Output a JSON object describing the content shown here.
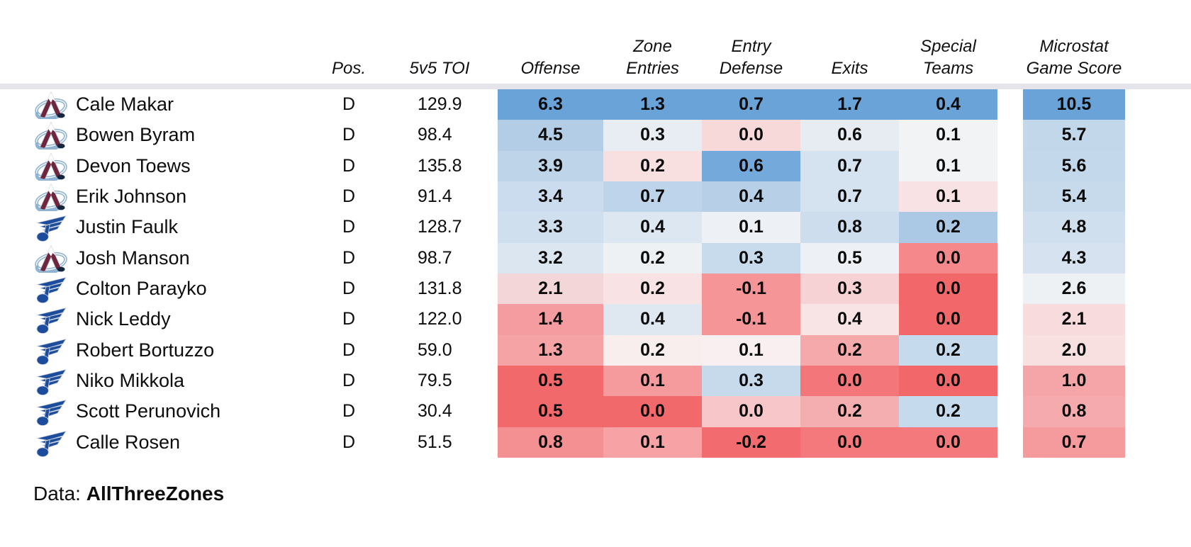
{
  "table": {
    "headers": {
      "pos": "Pos.",
      "toi": "5v5 TOI",
      "offense": "Offense",
      "zone_entries": [
        "Zone",
        "Entries"
      ],
      "entry_defense": [
        "Entry",
        "Defense"
      ],
      "exits": "Exits",
      "special_teams": [
        "Special",
        "Teams"
      ],
      "game_score": [
        "Microstat",
        "Game Score"
      ]
    }
  },
  "footer": {
    "prefix": "Data:",
    "source": "AllThreeZones"
  },
  "colors": {
    "divider": "#e4e4ea",
    "heat_high_blue": "#69a3d8",
    "heat_low_red": "#f2676a",
    "avalanche_burgundy": "#6f263d",
    "avalanche_steel_blue": "#8fb3d3",
    "blues_blue": "#1c4c9c"
  },
  "chart_data": {
    "type": "heatmap",
    "columns": [
      "Pos.",
      "5v5 TOI",
      "Offense",
      "Zone Entries",
      "Entry Defense",
      "Exits",
      "Special Teams",
      "Microstat Game Score"
    ],
    "legend": "Cell background encodes value per column: red = low, white = mid, blue = high",
    "rows": [
      {
        "player": "Cale Makar",
        "team": "Colorado Avalanche",
        "team_id": "AVL",
        "pos": "D",
        "toi": "129.9",
        "values": {
          "offense": "6.3",
          "zone_entries": "1.3",
          "entry_defense": "0.7",
          "exits": "1.7",
          "special_teams": "0.4",
          "game_score": "10.5"
        },
        "cell_colors": [
          "#69a3d8",
          "#69a3d8",
          "#69a3d8",
          "#69a3d8",
          "#69a3d8",
          "#69a3d8"
        ]
      },
      {
        "player": "Bowen Byram",
        "team": "Colorado Avalanche",
        "team_id": "AVL",
        "pos": "D",
        "toi": "98.4",
        "values": {
          "offense": "4.5",
          "zone_entries": "0.3",
          "entry_defense": "0.0",
          "exits": "0.6",
          "special_teams": "0.1",
          "game_score": "5.7"
        },
        "cell_colors": [
          "#b3cde7",
          "#e7edf3",
          "#f7d9da",
          "#e7ecf2",
          "#f1f3f4",
          "#c3d7ea"
        ]
      },
      {
        "player": "Devon Toews",
        "team": "Colorado Avalanche",
        "team_id": "AVL",
        "pos": "D",
        "toi": "135.8",
        "values": {
          "offense": "3.9",
          "zone_entries": "0.2",
          "entry_defense": "0.6",
          "exits": "0.7",
          "special_teams": "0.1",
          "game_score": "5.6"
        },
        "cell_colors": [
          "#bed4e9",
          "#f8dfe0",
          "#74a9db",
          "#d5e2ef",
          "#f1f3f4",
          "#c4d8eb"
        ]
      },
      {
        "player": "Erik Johnson",
        "team": "Colorado Avalanche",
        "team_id": "AVL",
        "pos": "D",
        "toi": "91.4",
        "values": {
          "offense": "3.4",
          "zone_entries": "0.7",
          "entry_defense": "0.4",
          "exits": "0.7",
          "special_teams": "0.1",
          "game_score": "5.4"
        },
        "cell_colors": [
          "#cbdcee",
          "#bed4ea",
          "#b7d0e8",
          "#d5e2ef",
          "#f9e2e3",
          "#c7daec"
        ]
      },
      {
        "player": "Justin Faulk",
        "team": "St. Louis Blues",
        "team_id": "STL",
        "pos": "D",
        "toi": "128.7",
        "values": {
          "offense": "3.3",
          "zone_entries": "0.4",
          "entry_defense": "0.1",
          "exits": "0.8",
          "special_teams": "0.2",
          "game_score": "4.8"
        },
        "cell_colors": [
          "#d0dfee",
          "#dde7f1",
          "#edf0f4",
          "#cdddee",
          "#abc8e4",
          "#cfdfee"
        ]
      },
      {
        "player": "Josh Manson",
        "team": "Colorado Avalanche",
        "team_id": "AVL",
        "pos": "D",
        "toi": "98.7",
        "values": {
          "offense": "3.2",
          "zone_entries": "0.2",
          "entry_defense": "0.3",
          "exits": "0.5",
          "special_teams": "0.0",
          "game_score": "4.3"
        },
        "cell_colors": [
          "#dce6f0",
          "#eef1f3",
          "#c8dbec",
          "#edf0f4",
          "#f5888b",
          "#d6e2ef"
        ]
      },
      {
        "player": "Colton Parayko",
        "team": "St. Louis Blues",
        "team_id": "STL",
        "pos": "D",
        "toi": "131.8",
        "values": {
          "offense": "2.1",
          "zone_entries": "0.2",
          "entry_defense": "-0.1",
          "exits": "0.3",
          "special_teams": "0.0",
          "game_score": "2.6"
        },
        "cell_colors": [
          "#f3d7d8",
          "#f8e2e3",
          "#f59598",
          "#f7d2d4",
          "#f2676a",
          "#eef1f4"
        ]
      },
      {
        "player": "Nick Leddy",
        "team": "St. Louis Blues",
        "team_id": "STL",
        "pos": "D",
        "toi": "122.0",
        "values": {
          "offense": "1.4",
          "zone_entries": "0.4",
          "entry_defense": "-0.1",
          "exits": "0.4",
          "special_teams": "0.0",
          "game_score": "2.1"
        },
        "cell_colors": [
          "#f49c9f",
          "#dfe8f1",
          "#f59598",
          "#f9e4e5",
          "#f2676a",
          "#f8dcdd"
        ]
      },
      {
        "player": "Robert Bortuzzo",
        "team": "St. Louis Blues",
        "team_id": "STL",
        "pos": "D",
        "toi": "59.0",
        "values": {
          "offense": "1.3",
          "zone_entries": "0.2",
          "entry_defense": "0.1",
          "exits": "0.2",
          "special_teams": "0.2",
          "game_score": "2.0"
        },
        "cell_colors": [
          "#f5a3a5",
          "#f9eeee",
          "#faeff0",
          "#f5a9ab",
          "#c6daed",
          "#f8e0e1"
        ]
      },
      {
        "player": "Niko Mikkola",
        "team": "St. Louis Blues",
        "team_id": "STL",
        "pos": "D",
        "toi": "79.5",
        "values": {
          "offense": "0.5",
          "zone_entries": "0.1",
          "entry_defense": "0.3",
          "exits": "0.0",
          "special_teams": "0.0",
          "game_score": "1.0"
        },
        "cell_colors": [
          "#f2696c",
          "#f59b9d",
          "#c6daec",
          "#f3777a",
          "#f2676a",
          "#f5a5a7"
        ]
      },
      {
        "player": "Scott Perunovich",
        "team": "St. Louis Blues",
        "team_id": "STL",
        "pos": "D",
        "toi": "30.4",
        "values": {
          "offense": "0.5",
          "zone_entries": "0.0",
          "entry_defense": "0.0",
          "exits": "0.2",
          "special_teams": "0.2",
          "game_score": "0.8"
        },
        "cell_colors": [
          "#f2696c",
          "#f2696c",
          "#f7c6c8",
          "#f5aeb0",
          "#c6daed",
          "#f5abad"
        ]
      },
      {
        "player": "Calle Rosen",
        "team": "St. Louis Blues",
        "team_id": "STL",
        "pos": "D",
        "toi": "51.5",
        "values": {
          "offense": "0.8",
          "zone_entries": "0.1",
          "entry_defense": "-0.2",
          "exits": "0.0",
          "special_teams": "0.0",
          "game_score": "0.7"
        },
        "cell_colors": [
          "#f48f92",
          "#f7a3a5",
          "#f26b6e",
          "#f3797c",
          "#f3797c",
          "#f59b9e"
        ]
      }
    ]
  }
}
